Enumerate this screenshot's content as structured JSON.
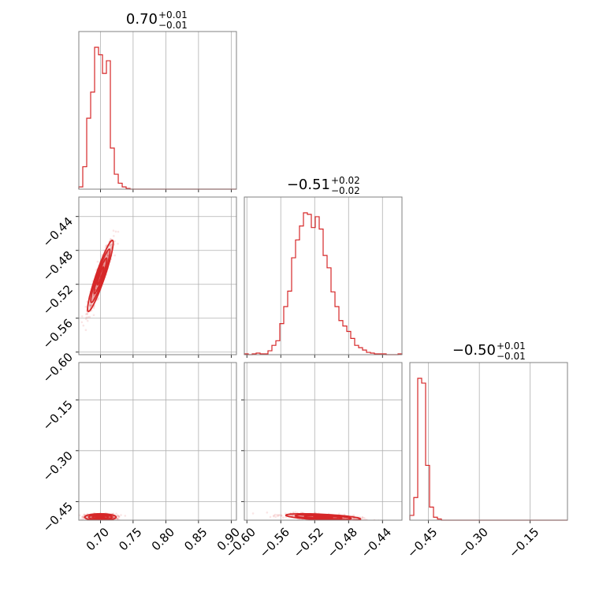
{
  "chart_data": {
    "type": "corner",
    "color": "#d62728",
    "grid": true,
    "titles": [
      {
        "value": "0.70",
        "plus": "+0.01",
        "minus": "−0.01"
      },
      {
        "value": "−0.51",
        "plus": "+0.02",
        "minus": "−0.02"
      },
      {
        "value": "−0.50",
        "plus": "+0.01",
        "minus": "−0.01"
      }
    ],
    "params": [
      {
        "range": [
          0.667,
          0.908
        ],
        "ticks": [
          0.7,
          0.75,
          0.8,
          0.85,
          0.9
        ],
        "tick_labels": [
          "0.70",
          "0.75",
          "0.80",
          "0.85",
          "0.90"
        ]
      },
      {
        "range": [
          -0.603,
          -0.417
        ],
        "ticks": [
          -0.6,
          -0.56,
          -0.52,
          -0.48,
          -0.44
        ],
        "tick_labels": [
          "−0.60",
          "−0.56",
          "−0.52",
          "−0.48",
          "−0.44"
        ]
      },
      {
        "range": [
          -0.505,
          -0.04
        ],
        "ticks": [
          -0.45,
          -0.3,
          -0.15
        ],
        "tick_labels": [
          "−0.45",
          "−0.30",
          "−0.15"
        ]
      }
    ],
    "hist1d": [
      {
        "bin_start": 0.667,
        "bin_width": 0.00603,
        "counts": [
          3,
          30,
          95,
          130,
          190,
          180,
          155,
          172,
          55,
          20,
          8,
          3,
          1,
          0,
          0,
          0,
          0,
          0,
          0,
          0,
          0,
          0,
          0,
          0,
          0,
          0,
          0,
          0,
          0,
          0,
          0,
          0,
          0,
          0,
          0,
          0,
          0,
          0,
          0,
          0
        ]
      },
      {
        "bin_start": -0.603,
        "bin_width": 0.00465,
        "counts": [
          1,
          0,
          1,
          2,
          1,
          1,
          5,
          12,
          18,
          40,
          62,
          82,
          125,
          148,
          166,
          183,
          181,
          164,
          178,
          162,
          128,
          112,
          81,
          62,
          44,
          37,
          30,
          21,
          12,
          9,
          6,
          3,
          2,
          1,
          1,
          1,
          0,
          0,
          0,
          1
        ]
      },
      {
        "bin_start": -0.505,
        "bin_width": 0.01163,
        "counts": [
          8,
          38,
          238,
          230,
          92,
          22,
          5,
          2,
          0,
          0,
          0,
          0,
          0,
          0,
          0,
          0,
          0,
          0,
          0,
          0,
          0,
          0,
          0,
          0,
          0,
          0,
          0,
          0,
          0,
          0,
          0,
          0,
          0,
          0,
          0,
          0,
          0,
          0,
          0,
          0
        ]
      }
    ],
    "hist2d": [
      {
        "x_param": 0,
        "y_param": 1,
        "mean": [
          0.7,
          -0.51
        ],
        "sigma": [
          0.0098,
          0.021
        ],
        "rho": 0.93
      },
      {
        "x_param": 0,
        "y_param": 2,
        "mean": [
          0.7,
          -0.496
        ],
        "sigma": [
          0.012,
          0.005
        ],
        "rho": 0.0
      },
      {
        "x_param": 1,
        "y_param": 2,
        "mean": [
          -0.51,
          -0.496
        ],
        "sigma": [
          0.022,
          0.005
        ],
        "rho": -0.55
      }
    ]
  }
}
